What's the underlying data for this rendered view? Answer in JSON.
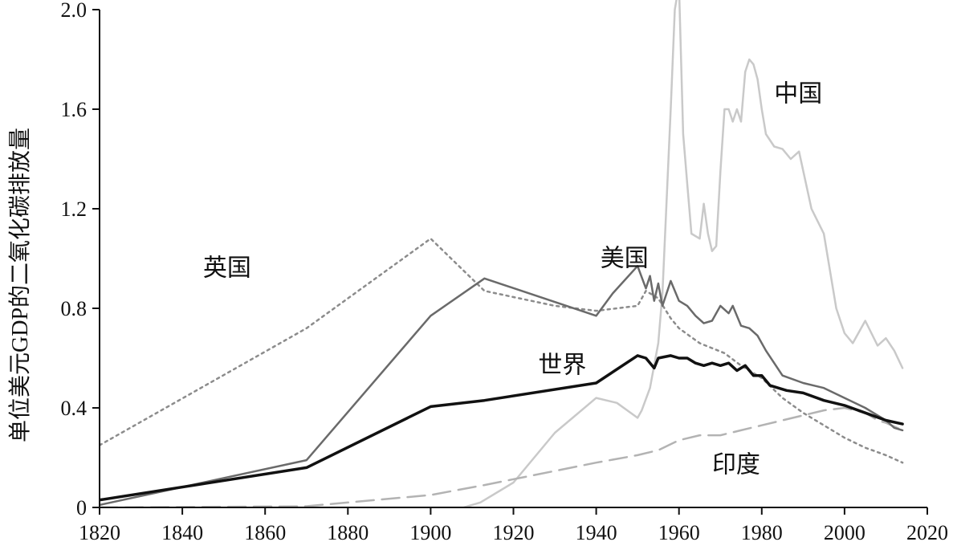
{
  "chart_data": {
    "type": "line",
    "title": "",
    "xlabel": "",
    "ylabel": "单位美元GDP的二氧化碳排放量",
    "xlim": [
      1820,
      2020
    ],
    "ylim": [
      0,
      2.0
    ],
    "x_ticks": [
      1820,
      1840,
      1860,
      1880,
      1900,
      1920,
      1940,
      1960,
      1980,
      2000,
      2020
    ],
    "y_ticks": [
      {
        "value": 0,
        "label": "0"
      },
      {
        "value": 0.4,
        "label": "0.4"
      },
      {
        "value": 0.8,
        "label": "0.8"
      },
      {
        "value": 1.2,
        "label": "1.2"
      },
      {
        "value": 1.6,
        "label": "1.6"
      },
      {
        "value": 2.0,
        "label": "2.0"
      }
    ],
    "grid": false,
    "legend": "none (labels placed directly on the lines)",
    "series": [
      {
        "name": "英国",
        "label_at": [
          1845,
          0.93
        ],
        "color": "#8c8c8c",
        "dash": "dotted",
        "width": 2.5,
        "points": [
          [
            1820,
            0.25
          ],
          [
            1870,
            0.72
          ],
          [
            1900,
            1.08
          ],
          [
            1913,
            0.87
          ],
          [
            1930,
            0.81
          ],
          [
            1940,
            0.79
          ],
          [
            1950,
            0.81
          ],
          [
            1952,
            0.87
          ],
          [
            1955,
            0.84
          ],
          [
            1958,
            0.76
          ],
          [
            1960,
            0.72
          ],
          [
            1965,
            0.66
          ],
          [
            1968,
            0.64
          ],
          [
            1971,
            0.62
          ],
          [
            1975,
            0.57
          ],
          [
            1980,
            0.52
          ],
          [
            1985,
            0.44
          ],
          [
            1990,
            0.38
          ],
          [
            1995,
            0.33
          ],
          [
            2000,
            0.28
          ],
          [
            2005,
            0.24
          ],
          [
            2010,
            0.21
          ],
          [
            2014,
            0.18
          ]
        ]
      },
      {
        "name": "美国",
        "label_at": [
          1941,
          0.97
        ],
        "color": "#6a6a6a",
        "dash": "solid",
        "width": 2.5,
        "points": [
          [
            1820,
            0.01
          ],
          [
            1870,
            0.19
          ],
          [
            1900,
            0.77
          ],
          [
            1913,
            0.92
          ],
          [
            1940,
            0.77
          ],
          [
            1944,
            0.86
          ],
          [
            1950,
            0.97
          ],
          [
            1952,
            0.88
          ],
          [
            1953,
            0.93
          ],
          [
            1954,
            0.83
          ],
          [
            1955,
            0.9
          ],
          [
            1956,
            0.81
          ],
          [
            1958,
            0.91
          ],
          [
            1960,
            0.83
          ],
          [
            1962,
            0.81
          ],
          [
            1964,
            0.77
          ],
          [
            1966,
            0.74
          ],
          [
            1968,
            0.75
          ],
          [
            1970,
            0.81
          ],
          [
            1972,
            0.78
          ],
          [
            1973,
            0.81
          ],
          [
            1975,
            0.73
          ],
          [
            1977,
            0.72
          ],
          [
            1979,
            0.69
          ],
          [
            1981,
            0.63
          ],
          [
            1983,
            0.58
          ],
          [
            1985,
            0.53
          ],
          [
            1990,
            0.5
          ],
          [
            1995,
            0.48
          ],
          [
            2000,
            0.44
          ],
          [
            2005,
            0.4
          ],
          [
            2008,
            0.37
          ],
          [
            2010,
            0.35
          ],
          [
            2012,
            0.32
          ],
          [
            2014,
            0.31
          ]
        ]
      },
      {
        "name": "世界",
        "label_at": [
          1926,
          0.54
        ],
        "color": "#111111",
        "dash": "solid",
        "width": 3.5,
        "points": [
          [
            1820,
            0.03
          ],
          [
            1870,
            0.16
          ],
          [
            1900,
            0.405
          ],
          [
            1913,
            0.43
          ],
          [
            1940,
            0.5
          ],
          [
            1950,
            0.61
          ],
          [
            1952,
            0.6
          ],
          [
            1954,
            0.56
          ],
          [
            1955,
            0.6
          ],
          [
            1958,
            0.61
          ],
          [
            1960,
            0.6
          ],
          [
            1962,
            0.6
          ],
          [
            1964,
            0.58
          ],
          [
            1966,
            0.57
          ],
          [
            1968,
            0.58
          ],
          [
            1970,
            0.57
          ],
          [
            1972,
            0.58
          ],
          [
            1974,
            0.55
          ],
          [
            1976,
            0.57
          ],
          [
            1978,
            0.53
          ],
          [
            1980,
            0.53
          ],
          [
            1982,
            0.49
          ],
          [
            1984,
            0.48
          ],
          [
            1986,
            0.47
          ],
          [
            1990,
            0.46
          ],
          [
            1995,
            0.43
          ],
          [
            2000,
            0.41
          ],
          [
            2005,
            0.38
          ],
          [
            2010,
            0.35
          ],
          [
            2014,
            0.335
          ]
        ]
      },
      {
        "name": "中国",
        "label_at": [
          1983,
          1.63
        ],
        "color": "#c9c9c9",
        "dash": "solid",
        "width": 2.5,
        "points": [
          [
            1820,
            0
          ],
          [
            1900,
            0
          ],
          [
            1908,
            0
          ],
          [
            1912,
            0.02
          ],
          [
            1920,
            0.1
          ],
          [
            1930,
            0.3
          ],
          [
            1940,
            0.44
          ],
          [
            1945,
            0.42
          ],
          [
            1950,
            0.36
          ],
          [
            1951,
            0.39
          ],
          [
            1953,
            0.48
          ],
          [
            1955,
            0.66
          ],
          [
            1956,
            0.86
          ],
          [
            1958,
            1.6
          ],
          [
            1959,
            2.0
          ],
          [
            1960,
            2.1
          ],
          [
            1961,
            1.5
          ],
          [
            1962,
            1.3
          ],
          [
            1963,
            1.1
          ],
          [
            1965,
            1.08
          ],
          [
            1966,
            1.22
          ],
          [
            1967,
            1.1
          ],
          [
            1968,
            1.03
          ],
          [
            1969,
            1.05
          ],
          [
            1970,
            1.35
          ],
          [
            1971,
            1.6
          ],
          [
            1972,
            1.6
          ],
          [
            1973,
            1.55
          ],
          [
            1974,
            1.6
          ],
          [
            1975,
            1.55
          ],
          [
            1976,
            1.75
          ],
          [
            1977,
            1.8
          ],
          [
            1978,
            1.78
          ],
          [
            1979,
            1.72
          ],
          [
            1980,
            1.6
          ],
          [
            1981,
            1.5
          ],
          [
            1983,
            1.45
          ],
          [
            1985,
            1.44
          ],
          [
            1987,
            1.4
          ],
          [
            1989,
            1.43
          ],
          [
            1992,
            1.2
          ],
          [
            1995,
            1.1
          ],
          [
            1998,
            0.8
          ],
          [
            2000,
            0.7
          ],
          [
            2002,
            0.66
          ],
          [
            2005,
            0.75
          ],
          [
            2008,
            0.65
          ],
          [
            2010,
            0.68
          ],
          [
            2012,
            0.63
          ],
          [
            2014,
            0.56
          ]
        ]
      },
      {
        "name": "印度",
        "label_at": [
          1968,
          0.14
        ],
        "color": "#b3b3b3",
        "dash": "dashed",
        "width": 2.5,
        "points": [
          [
            1820,
            0
          ],
          [
            1870,
            0.005
          ],
          [
            1900,
            0.05
          ],
          [
            1913,
            0.09
          ],
          [
            1940,
            0.18
          ],
          [
            1950,
            0.21
          ],
          [
            1955,
            0.23
          ],
          [
            1960,
            0.27
          ],
          [
            1965,
            0.29
          ],
          [
            1970,
            0.29
          ],
          [
            1975,
            0.31
          ],
          [
            1980,
            0.33
          ],
          [
            1985,
            0.35
          ],
          [
            1990,
            0.37
          ],
          [
            1995,
            0.39
          ],
          [
            2000,
            0.4
          ],
          [
            2005,
            0.38
          ],
          [
            2008,
            0.35
          ],
          [
            2010,
            0.34
          ],
          [
            2014,
            0.31
          ]
        ]
      }
    ]
  }
}
